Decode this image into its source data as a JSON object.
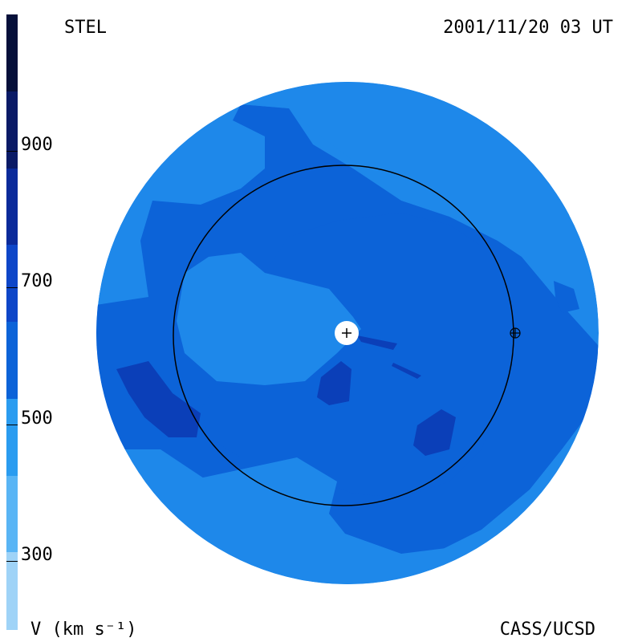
{
  "header": {
    "observatory": "STEL",
    "timestamp": "2001/11/20 03 UT"
  },
  "footer": {
    "unit_label": "V (km s⁻¹)",
    "credit": "CASS/UCSD"
  },
  "colorbar": {
    "tick_labels": [
      "900",
      "700",
      "500",
      "300"
    ],
    "tick_values": [
      900,
      700,
      500,
      300
    ],
    "segments": [
      {
        "color": "#06103a"
      },
      {
        "color": "#0a1a66"
      },
      {
        "color": "#0b2a9a"
      },
      {
        "color": "#0e46c8"
      },
      {
        "color": "#0c63d8"
      },
      {
        "color": "#2a9cf0"
      },
      {
        "color": "#59b5f5"
      },
      {
        "color": "#9fd3f7"
      }
    ]
  },
  "map": {
    "colors": {
      "background_flow": "#1e88ea",
      "mid_flow": "#0c63d8",
      "fast_flow": "#0b3fb8",
      "earth_orbit": "#000000",
      "sun_marker": "#ffffff"
    },
    "icons": [
      "sun-icon",
      "earth-icon"
    ]
  }
}
